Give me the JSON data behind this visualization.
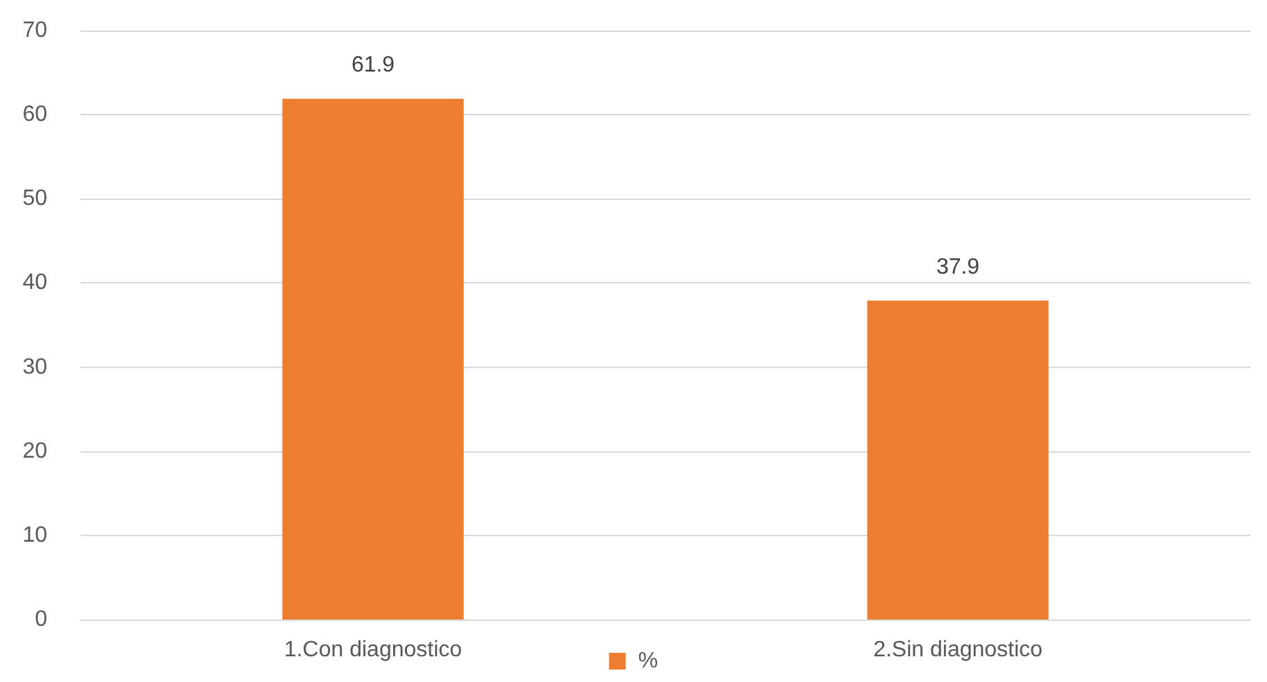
{
  "chart_data": {
    "type": "bar",
    "categories": [
      "1.Con diagnostico",
      "2.Sin diagnostico"
    ],
    "series": [
      {
        "name": "%",
        "color": "#ed7d31",
        "values": [
          61.9,
          37.9
        ]
      }
    ],
    "ylim": [
      0,
      70
    ],
    "yticks": [
      0,
      10,
      20,
      30,
      40,
      50,
      60,
      70
    ],
    "grid": "y",
    "legend": "bottom",
    "data_labels": true
  }
}
